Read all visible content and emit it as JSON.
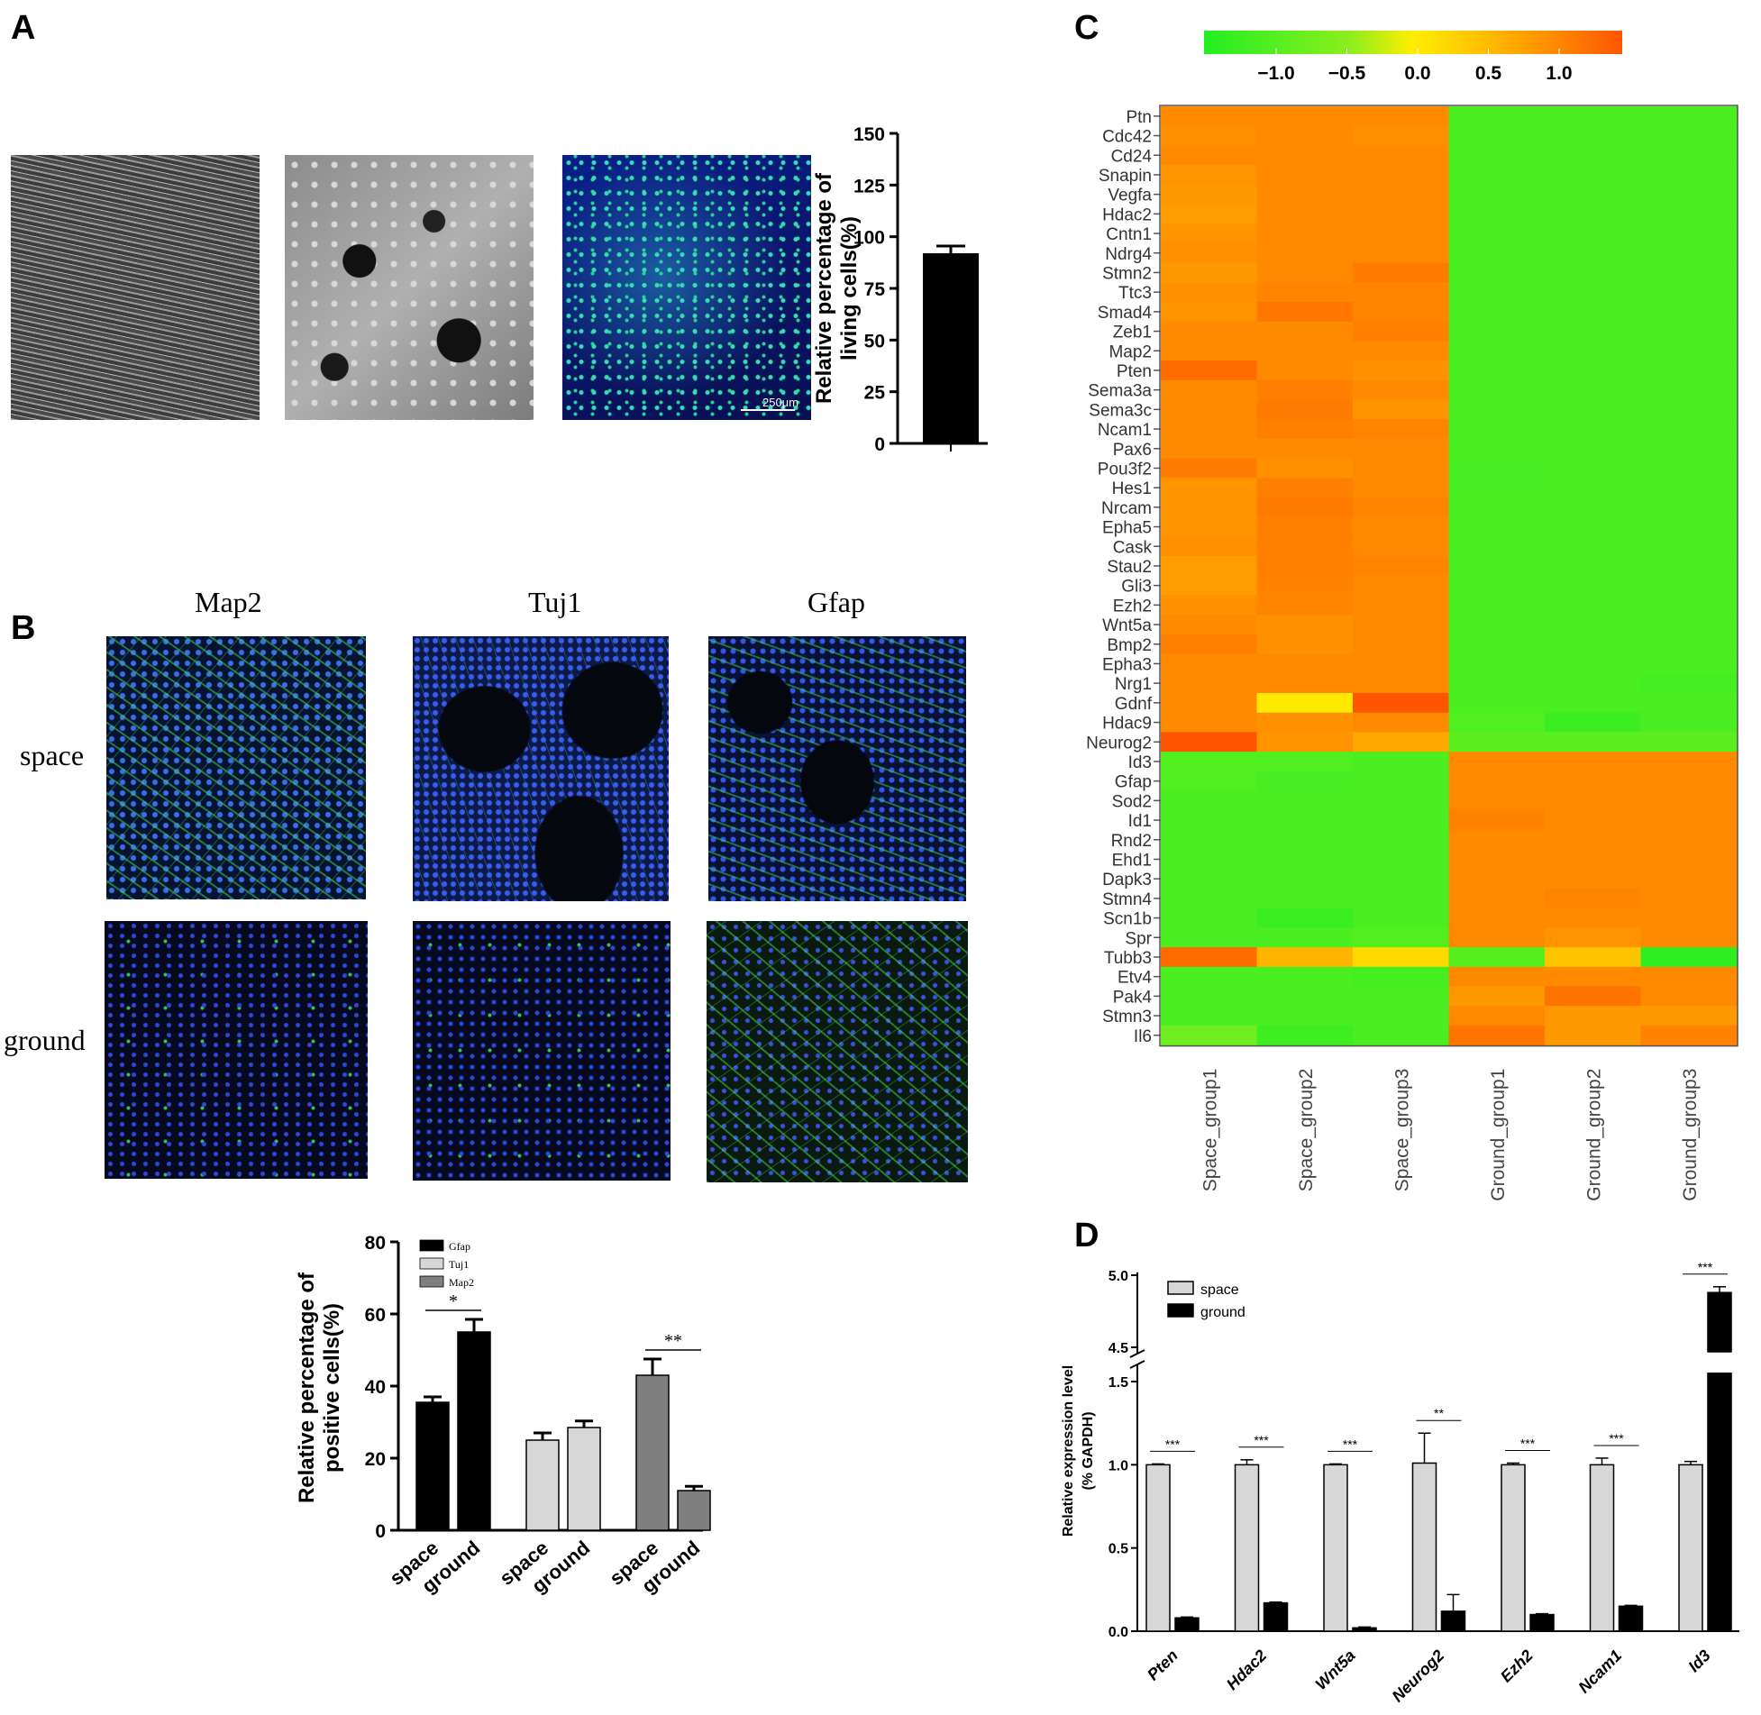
{
  "panels": {
    "a": "A",
    "b": "B",
    "c": "C",
    "d": "D"
  },
  "panel_a": {
    "scale_bar": "250μm"
  },
  "panel_b": {
    "columns": [
      "Map2",
      "Tuj1",
      "Gfap"
    ],
    "rows": [
      "space",
      "ground"
    ]
  },
  "colors": {
    "black": "#000000",
    "light_grey": "#d7d7d7",
    "mid_grey": "#7f7f7f",
    "heat_low": "#22ee22",
    "heat_mid": "#ffee00",
    "heat_high": "#ff5500"
  },
  "chart_data": [
    {
      "id": "A-living-cells",
      "type": "bar",
      "categories": [
        ""
      ],
      "values": [
        92
      ],
      "errors": [
        3.5
      ],
      "ylabel_line1": "Relative percentage of",
      "ylabel_line2": "living cells(%)",
      "ylim": [
        0,
        150
      ],
      "yticks": [
        "0",
        "25",
        "50",
        "75",
        "100",
        "125",
        "150"
      ]
    },
    {
      "id": "B-positive-cells",
      "type": "bar",
      "ylabel_line1": "Relative percentage of",
      "ylabel_line2": "positive cells(%)",
      "ylim": [
        0,
        80
      ],
      "yticks": [
        "0",
        "20",
        "40",
        "60",
        "80"
      ],
      "legend": [
        "Gfap",
        "Tuj1",
        "Map2"
      ],
      "groups": [
        {
          "marker": "Gfap",
          "space": 35.5,
          "space_err": 1.5,
          "ground": 55,
          "ground_err": 3.5,
          "sig": "*"
        },
        {
          "marker": "Tuj1",
          "space": 25,
          "space_err": 2,
          "ground": 28.5,
          "ground_err": 1.8,
          "sig": ""
        },
        {
          "marker": "Map2",
          "space": 43,
          "space_err": 4.5,
          "ground": 11,
          "ground_err": 1.2,
          "sig": "**"
        }
      ],
      "xlabels": [
        "space",
        "ground"
      ]
    },
    {
      "id": "C-heatmap",
      "type": "heatmap",
      "colorbar_ticks": [
        "−1.0",
        "−0.5",
        "0.0",
        "0.5",
        "1.0"
      ],
      "columns": [
        "Space_group1",
        "Space_group2",
        "Space_group3",
        "Ground_group1",
        "Ground_group2",
        "Ground_group3"
      ],
      "rows": [
        "Ptn",
        "Cdc42",
        "Cd24",
        "Snapin",
        "Vegfa",
        "Hdac2",
        "Cntn1",
        "Ndrg4",
        "Stmn2",
        "Ttc3",
        "Smad4",
        "Zeb1",
        "Map2",
        "Pten",
        "Sema3a",
        "Sema3c",
        "Ncam1",
        "Pax6",
        "Pou3f2",
        "Hes1",
        "Nrcam",
        "Epha5",
        "Cask",
        "Stau2",
        "Gli3",
        "Ezh2",
        "Wnt5a",
        "Bmp2",
        "Epha3",
        "Nrg1",
        "Gdnf",
        "Hdac9",
        "Neurog2",
        "Id3",
        "Gfap",
        "Sod2",
        "Id1",
        "Rnd2",
        "Ehd1",
        "Dapk3",
        "Stmn4",
        "Scn1b",
        "Spr",
        "Tubb3",
        "Etv4",
        "Pak4",
        "Stmn3",
        "Il6"
      ],
      "values": [
        [
          0.85,
          0.85,
          0.85,
          -0.85,
          -0.85,
          -0.85
        ],
        [
          0.82,
          0.85,
          0.82,
          -0.85,
          -0.85,
          -0.85
        ],
        [
          0.85,
          0.85,
          0.85,
          -0.85,
          -0.85,
          -0.85
        ],
        [
          0.78,
          0.85,
          0.85,
          -0.85,
          -0.85,
          -0.85
        ],
        [
          0.75,
          0.85,
          0.85,
          -0.85,
          -0.85,
          -0.85
        ],
        [
          0.72,
          0.85,
          0.85,
          -0.85,
          -0.85,
          -0.85
        ],
        [
          0.78,
          0.85,
          0.85,
          -0.85,
          -0.85,
          -0.85
        ],
        [
          0.8,
          0.85,
          0.85,
          -0.85,
          -0.85,
          -0.85
        ],
        [
          0.75,
          0.85,
          0.95,
          -0.85,
          -0.85,
          -0.85
        ],
        [
          0.8,
          0.88,
          0.88,
          -0.85,
          -0.85,
          -0.85
        ],
        [
          0.78,
          0.98,
          0.88,
          -0.85,
          -0.85,
          -0.85
        ],
        [
          0.85,
          0.85,
          0.92,
          -0.85,
          -0.85,
          -0.85
        ],
        [
          0.85,
          0.85,
          0.85,
          -0.85,
          -0.85,
          -0.85
        ],
        [
          1.05,
          0.85,
          0.8,
          -0.85,
          -0.85,
          -0.85
        ],
        [
          0.85,
          0.92,
          0.85,
          -0.85,
          -0.85,
          -0.85
        ],
        [
          0.85,
          0.95,
          0.78,
          -0.85,
          -0.85,
          -0.85
        ],
        [
          0.85,
          0.92,
          0.88,
          -0.85,
          -0.85,
          -0.85
        ],
        [
          0.85,
          0.85,
          0.85,
          -0.85,
          -0.85,
          -0.85
        ],
        [
          0.95,
          0.8,
          0.85,
          -0.88,
          -0.85,
          -0.85
        ],
        [
          0.78,
          0.92,
          0.85,
          -0.88,
          -0.85,
          -0.85
        ],
        [
          0.78,
          0.95,
          0.88,
          -0.85,
          -0.85,
          -0.85
        ],
        [
          0.78,
          0.92,
          0.85,
          -0.85,
          -0.85,
          -0.85
        ],
        [
          0.8,
          0.92,
          0.85,
          -0.85,
          -0.85,
          -0.85
        ],
        [
          0.72,
          0.92,
          0.88,
          -0.85,
          -0.85,
          -0.85
        ],
        [
          0.72,
          0.9,
          0.85,
          -0.85,
          -0.85,
          -0.85
        ],
        [
          0.8,
          0.88,
          0.85,
          -0.85,
          -0.85,
          -0.85
        ],
        [
          0.85,
          0.8,
          0.85,
          -0.85,
          -0.85,
          -0.85
        ],
        [
          0.92,
          0.8,
          0.85,
          -0.85,
          -0.85,
          -0.85
        ],
        [
          0.85,
          0.85,
          0.85,
          -0.85,
          -0.85,
          -0.85
        ],
        [
          0.85,
          0.85,
          0.85,
          -0.85,
          -0.85,
          -0.92
        ],
        [
          0.85,
          0.05,
          1.2,
          -0.85,
          -0.85,
          -0.85
        ],
        [
          0.85,
          0.8,
          0.85,
          -0.8,
          -0.98,
          -0.85
        ],
        [
          1.2,
          0.78,
          0.65,
          -0.7,
          -0.7,
          -0.7
        ],
        [
          -0.8,
          -0.8,
          -0.85,
          0.85,
          0.85,
          0.85
        ],
        [
          -0.8,
          -0.88,
          -0.85,
          0.85,
          0.85,
          0.85
        ],
        [
          -0.85,
          -0.85,
          -0.85,
          0.85,
          0.85,
          0.85
        ],
        [
          -0.85,
          -0.85,
          -0.85,
          0.9,
          0.85,
          0.85
        ],
        [
          -0.85,
          -0.85,
          -0.85,
          0.85,
          0.85,
          0.85
        ],
        [
          -0.85,
          -0.85,
          -0.85,
          0.85,
          0.85,
          0.85
        ],
        [
          -0.85,
          -0.85,
          -0.85,
          0.85,
          0.85,
          0.85
        ],
        [
          -0.85,
          -0.85,
          -0.85,
          0.85,
          0.88,
          0.85
        ],
        [
          -0.85,
          -1.0,
          -0.85,
          0.85,
          0.85,
          0.85
        ],
        [
          -0.85,
          -0.85,
          -0.78,
          0.85,
          0.78,
          0.85
        ],
        [
          1.05,
          0.55,
          0.2,
          -0.75,
          0.4,
          -1.1
        ],
        [
          -0.85,
          -0.85,
          -0.9,
          0.85,
          0.85,
          0.85
        ],
        [
          -0.85,
          -0.85,
          -0.85,
          0.75,
          1.0,
          0.85
        ],
        [
          -0.85,
          -0.85,
          -0.85,
          0.85,
          0.75,
          0.75
        ],
        [
          -0.55,
          -0.95,
          -0.85,
          1.0,
          0.75,
          0.9
        ]
      ]
    },
    {
      "id": "D-expression",
      "type": "bar",
      "ylabel_line1": "Relative expression level",
      "ylabel_line2": "(% GAPDH)",
      "legend": [
        "space",
        "ground"
      ],
      "yticks_lower": [
        "0.0",
        "0.5",
        "1.0",
        "1.5"
      ],
      "yticks_upper": [
        "4.5",
        "5.0"
      ],
      "categories": [
        "Pten",
        "Hdac2",
        "Wnt5a",
        "Neurog2",
        "Ezh2",
        "Ncam1",
        "Id3"
      ],
      "space": [
        1.0,
        1.0,
        1.0,
        1.01,
        1.0,
        1.0,
        1.0
      ],
      "space_err": [
        0.005,
        0.03,
        0.005,
        0.18,
        0.01,
        0.04,
        0.02
      ],
      "ground": [
        0.08,
        0.17,
        0.02,
        0.12,
        0.1,
        0.15,
        4.88
      ],
      "ground_err": [
        0.005,
        0.005,
        0.005,
        0.1,
        0.005,
        0.005,
        0.04
      ],
      "sig": [
        "***",
        "***",
        "***",
        "**",
        "***",
        "***",
        "***"
      ]
    }
  ]
}
